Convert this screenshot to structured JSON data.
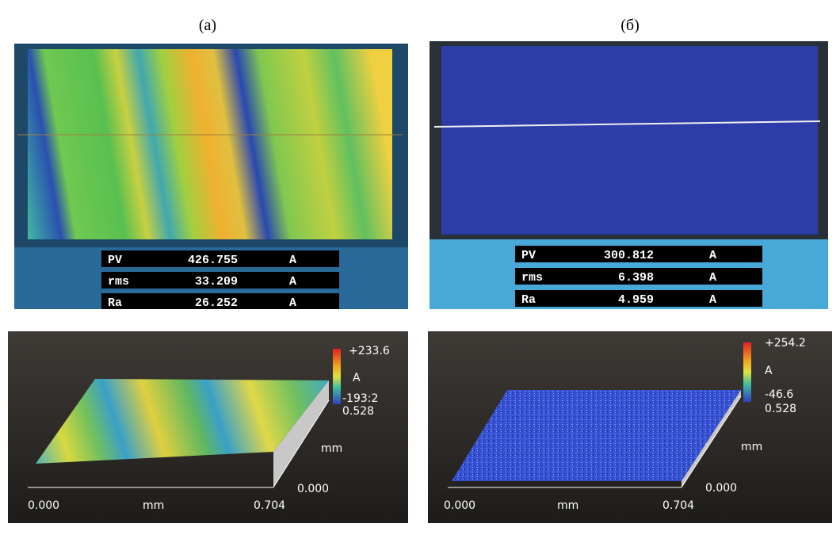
{
  "panels": [
    {
      "label": "(a)",
      "stats": [
        {
          "name": "PV",
          "value": "426.755",
          "unit": "A"
        },
        {
          "name": "rms",
          "value": "33.209",
          "unit": "A"
        },
        {
          "name": "Ra",
          "value": "26.252",
          "unit": "A"
        }
      ],
      "surface": {
        "z_max": "+233.6",
        "z_unit": "A",
        "z_min": "-193:2",
        "y_max": "0.528",
        "y_label": "mm",
        "y_min": "0.000",
        "x_min": "0.000",
        "x_label": "mm",
        "x_max": "0.704"
      }
    },
    {
      "label": "(б)",
      "stats": [
        {
          "name": "PV",
          "value": "300.812",
          "unit": "A"
        },
        {
          "name": "rms",
          "value": "6.398",
          "unit": "A"
        },
        {
          "name": "Ra",
          "value": "4.959",
          "unit": "A"
        }
      ],
      "surface": {
        "z_max": "+254.2",
        "z_unit": "A",
        "z_min": "-46.6",
        "y_max": "0.528",
        "y_label": "mm",
        "y_min": "0.000",
        "x_min": "0.000",
        "x_label": "mm",
        "x_max": "0.704"
      }
    }
  ]
}
